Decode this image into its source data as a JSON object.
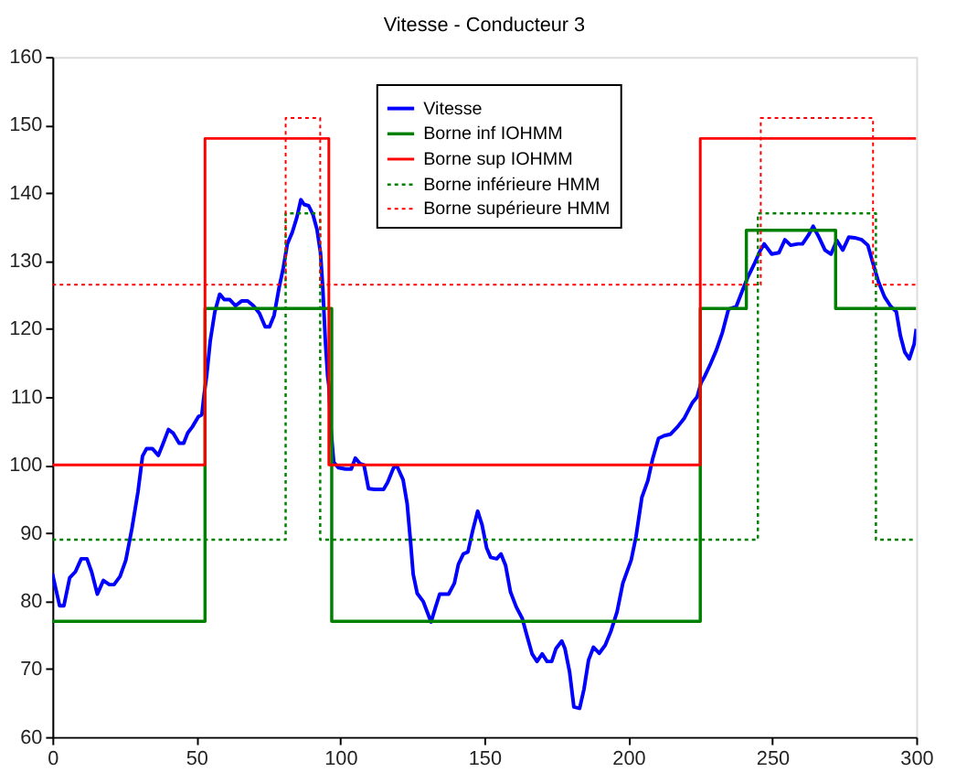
{
  "chart_data": {
    "type": "line",
    "title": "Vitesse - Conducteur 3",
    "xlim": [
      0,
      300
    ],
    "ylim": [
      60,
      160
    ],
    "xticks": [
      0,
      50,
      100,
      150,
      200,
      250,
      300
    ],
    "yticks": [
      60,
      70,
      80,
      90,
      100,
      110,
      120,
      130,
      140,
      150,
      160
    ],
    "grid": false,
    "legend": "top",
    "series": [
      {
        "name": "Vitesse",
        "color": "#0000ff",
        "line_style": "solid",
        "x": [
          0,
          2.5,
          4,
          6,
          8,
          10,
          12,
          13.6,
          15.6,
          17.7,
          19.8,
          21.4,
          23.5,
          25.5,
          27.6,
          29.7,
          31.3,
          32.7,
          34.7,
          36.8,
          38.4,
          40.3,
          41.9,
          44,
          45.6,
          47,
          48.6,
          50.7,
          51.9,
          52.7,
          53.6,
          54.8,
          56.4,
          58.1,
          59.7,
          61.6,
          63.6,
          65.7,
          67.8,
          69.8,
          71.9,
          73.9,
          75.4,
          77,
          78.7,
          80.2,
          81.6,
          83.3,
          84.9,
          86.3,
          87.4,
          89,
          90.5,
          91.9,
          93.1,
          93.9,
          94.8,
          95.6,
          96,
          96.6,
          97.7,
          99.3,
          101.8,
          103.8,
          105.2,
          106.8,
          108.2,
          109.8,
          111.9,
          115,
          116.4,
          118.5,
          119.7,
          121.8,
          123.2,
          124.3,
          125.3,
          126.7,
          128.8,
          131.5,
          133,
          134.5,
          137.6,
          139.6,
          141,
          142.7,
          144.3,
          146,
          147.7,
          149.2,
          150.8,
          152.2,
          154.3,
          155.8,
          157.4,
          159.1,
          161.1,
          163.2,
          164.6,
          166.6,
          168.3,
          170.1,
          171.8,
          173.4,
          174.9,
          176.9,
          178,
          179.6,
          181.1,
          183.1,
          184.6,
          186.2,
          187.9,
          189.9,
          192,
          194,
          196.1,
          198.1,
          201,
          202.7,
          204.7,
          206.8,
          208.4,
          210.5,
          212.5,
          214.6,
          217.1,
          219.5,
          222.2,
          223.9,
          225.3,
          226.5,
          228.6,
          230.6,
          232.7,
          234.8,
          237.5,
          239.5,
          241.6,
          243.7,
          245.7,
          247.2,
          249.8,
          252.3,
          254.4,
          256.4,
          258.9,
          260.5,
          262.6,
          264.2,
          266.3,
          268.3,
          270.4,
          272.4,
          274.5,
          276.6,
          278.6,
          281.1,
          283.2,
          284.8,
          286.9,
          289,
          291,
          293.1,
          294.5,
          296,
          297.6,
          299.3,
          300
        ],
        "values": [
          84,
          79.3,
          79.3,
          83.4,
          84.3,
          86.2,
          86.2,
          84.3,
          81,
          83,
          82.4,
          82.4,
          83.6,
          86,
          90.6,
          96,
          101.3,
          102.4,
          102.4,
          101.4,
          103.1,
          105.2,
          104.7,
          103.2,
          103.2,
          104.7,
          105.6,
          107.1,
          107.4,
          110.4,
          113.2,
          118.2,
          122.5,
          125.1,
          124.3,
          124.3,
          123.4,
          124.1,
          124.1,
          123.4,
          122.3,
          120.3,
          120.3,
          122,
          126,
          129,
          132.5,
          134.2,
          136.4,
          139,
          138.3,
          138.1,
          136.8,
          134.6,
          131.2,
          126,
          118.2,
          113,
          111.7,
          106,
          100.4,
          99.6,
          99.4,
          99.4,
          101,
          100.2,
          100,
          96.5,
          96.4,
          96.4,
          97.4,
          99.6,
          99.8,
          97.8,
          94.3,
          89.1,
          83.9,
          81.1,
          79.9,
          76.9,
          79,
          81,
          81,
          82.6,
          85.4,
          86.9,
          87.2,
          90.4,
          93.2,
          91.2,
          87.8,
          86.4,
          86.2,
          86.9,
          85.2,
          81.3,
          79.1,
          77.4,
          75.2,
          72.2,
          71.1,
          72.2,
          71.1,
          71.1,
          73,
          74.1,
          73,
          69.6,
          64.4,
          64.2,
          67,
          71.3,
          73.2,
          72.3,
          73.5,
          75.6,
          78.4,
          82.6,
          86,
          89.5,
          95.2,
          97.7,
          100.8,
          103.9,
          104.3,
          104.5,
          105.6,
          106.9,
          109.1,
          110,
          112.1,
          113,
          114.9,
          116.9,
          119.5,
          122.9,
          123.3,
          125.5,
          127.7,
          129.5,
          131.4,
          132.5,
          131,
          131.2,
          133.1,
          132.3,
          132.5,
          132.5,
          133.8,
          135.1,
          133.4,
          131.6,
          131,
          133,
          131.6,
          133.5,
          133.4,
          133.1,
          132.3,
          129.9,
          126.9,
          124.7,
          123.4,
          122.5,
          119,
          116.6,
          115.6,
          117.8,
          120
        ]
      },
      {
        "name": "Borne inf IOHMM",
        "color": "#008000",
        "type": "step",
        "line_style": "solid",
        "x": [
          0,
          53,
          97,
          225,
          241,
          272,
          300
        ],
        "values": [
          77,
          123,
          77,
          123,
          134.5,
          123,
          123
        ]
      },
      {
        "name": "Borne sup IOHMM",
        "color": "#ff0000",
        "type": "step",
        "line_style": "solid",
        "x": [
          0,
          53,
          96,
          225,
          300
        ],
        "values": [
          100,
          148,
          100,
          148,
          148
        ]
      },
      {
        "name": "Borne inférieure HMM",
        "color": "#008000",
        "type": "step",
        "line_style": "dotted",
        "x": [
          0,
          81,
          93,
          245,
          286,
          300
        ],
        "values": [
          89,
          137,
          89,
          137,
          89,
          89
        ]
      },
      {
        "name": "Borne supérieure HMM",
        "color": "#ff0000",
        "type": "step",
        "line_style": "dotted",
        "x": [
          0,
          81,
          93,
          246,
          285,
          300
        ],
        "values": [
          126.5,
          151,
          126.5,
          151,
          126.5,
          126.5
        ]
      }
    ]
  }
}
